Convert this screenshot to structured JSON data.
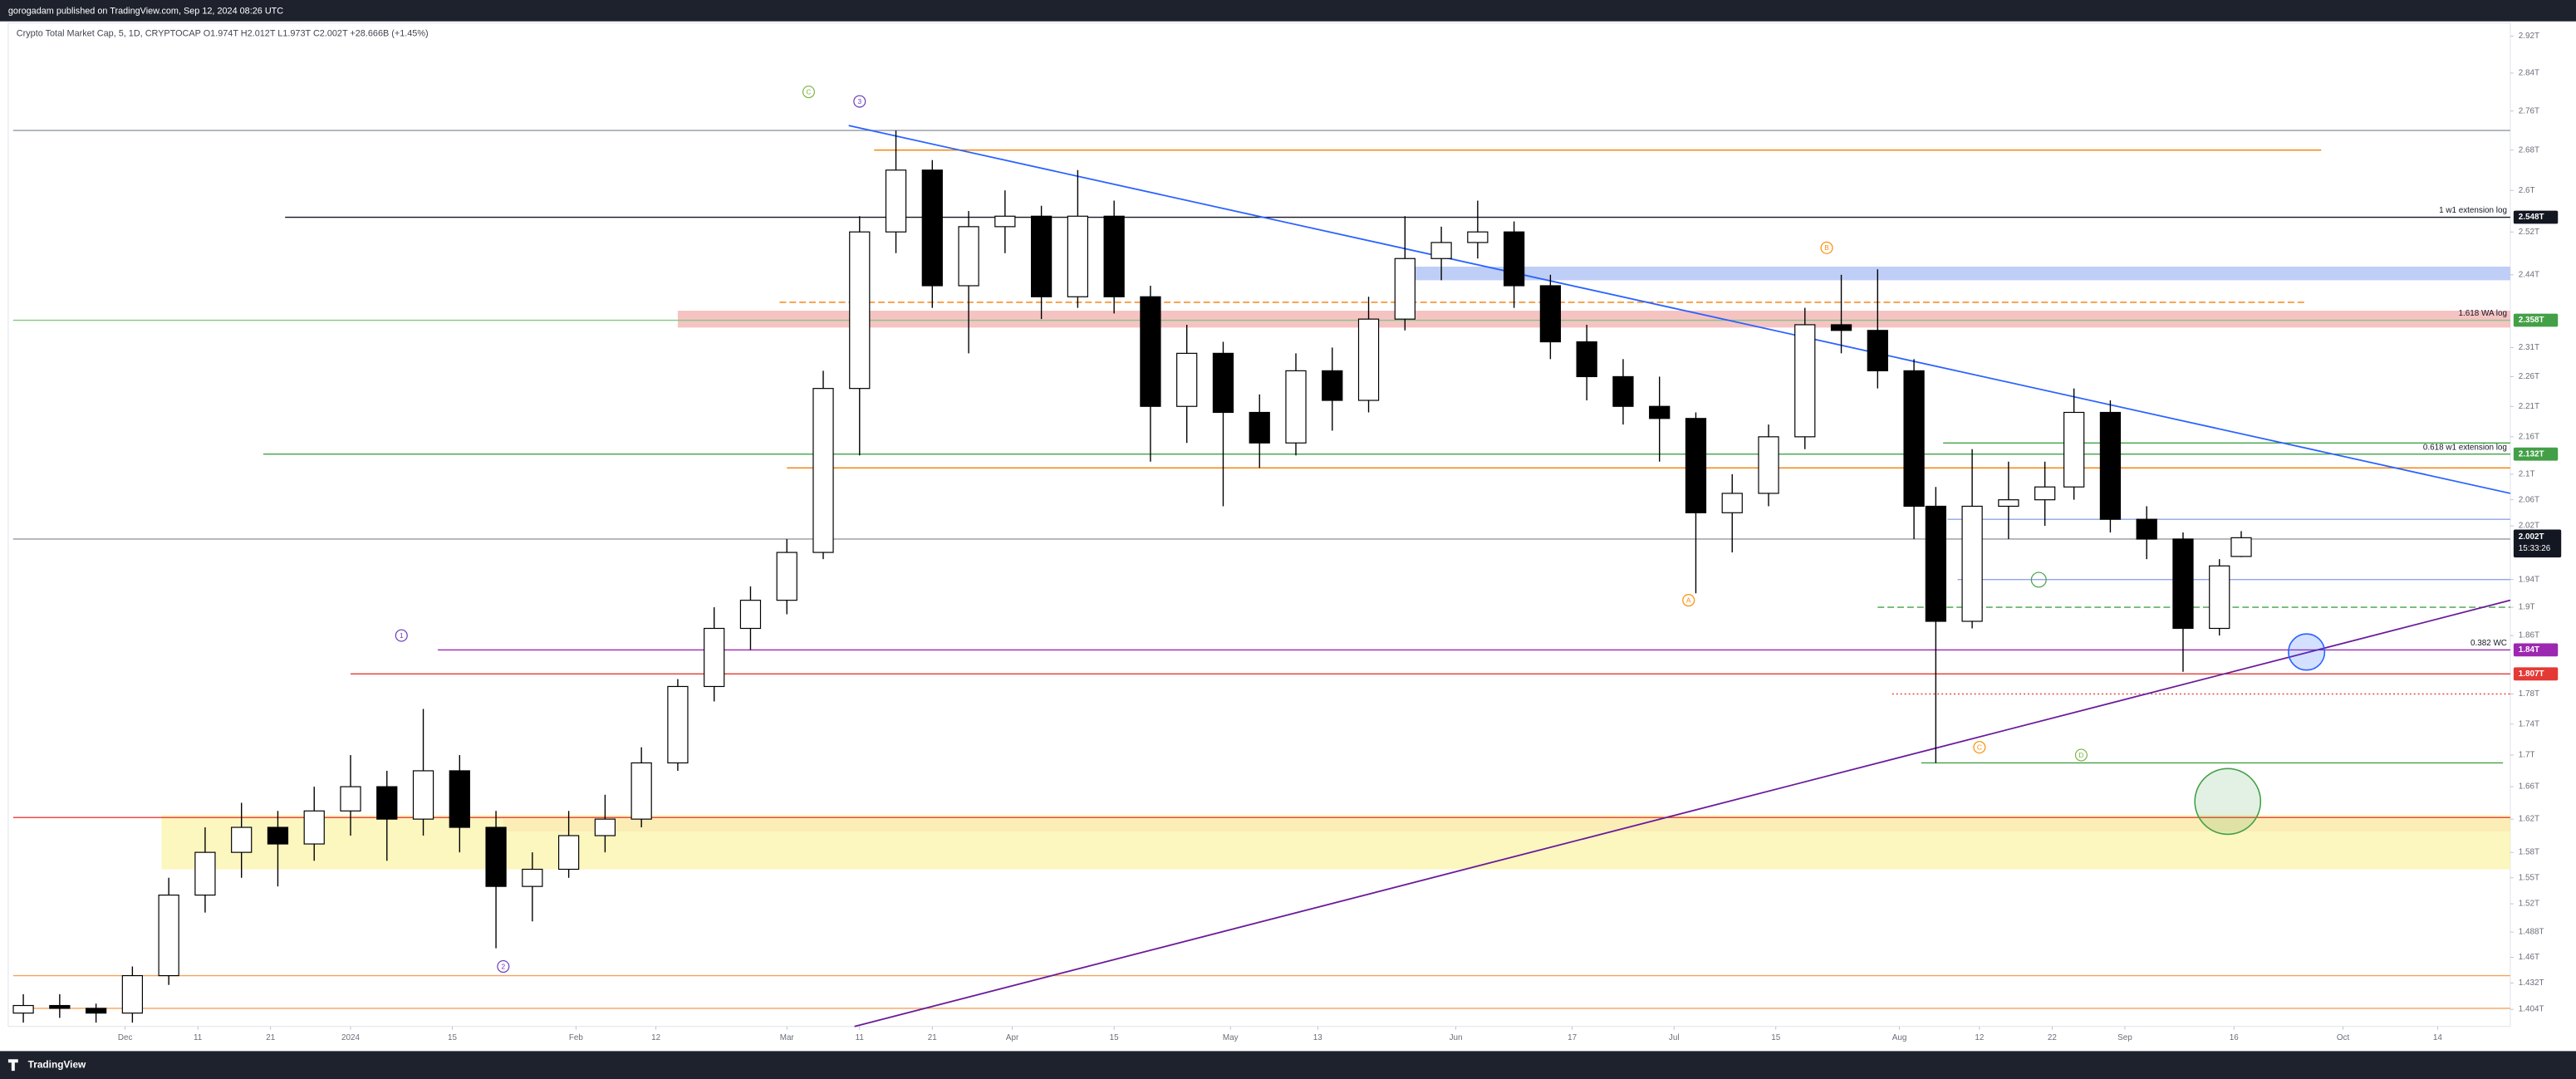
{
  "header": "gorogadam published on TradingView.com, Sep 12, 2024 08:26 UTC",
  "footer": "TradingView",
  "chart_data": {
    "type": "candlestick",
    "legend_text": "Crypto Total Market Cap, 5, 1D, CRYPTOCAP O1.974T H2.012T L1.973T C2.002T +28.666B (+1.45%)",
    "log_scale": true,
    "grid": false,
    "up_color": "#ffffff",
    "down_color": "#000000",
    "xlim": [
      -15.4,
      328
    ],
    "xticks": [
      {
        "value": 0,
        "label": "Dec"
      },
      {
        "value": 10,
        "label": "11"
      },
      {
        "value": 20,
        "label": "21"
      },
      {
        "value": 31,
        "label": "2024"
      },
      {
        "value": 45,
        "label": "15"
      },
      {
        "value": 62,
        "label": "Feb"
      },
      {
        "value": 73,
        "label": "12"
      },
      {
        "value": 91,
        "label": "Mar"
      },
      {
        "value": 101,
        "label": "11"
      },
      {
        "value": 111,
        "label": "21"
      },
      {
        "value": 122,
        "label": "Apr"
      },
      {
        "value": 136,
        "label": "15"
      },
      {
        "value": 152,
        "label": "May"
      },
      {
        "value": 164,
        "label": "13"
      },
      {
        "value": 183,
        "label": "Jun"
      },
      {
        "value": 199,
        "label": "17"
      },
      {
        "value": 213,
        "label": "Jul"
      },
      {
        "value": 227,
        "label": "15"
      },
      {
        "value": 244,
        "label": "Aug"
      },
      {
        "value": 255,
        "label": "12"
      },
      {
        "value": 265,
        "label": "22"
      },
      {
        "value": 275,
        "label": "Sep"
      },
      {
        "value": 290,
        "label": "16"
      },
      {
        "value": 305,
        "label": "Oct"
      },
      {
        "value": 318,
        "label": "14"
      }
    ],
    "ylim": [
      1.386,
      2.949
    ],
    "yticks": [
      {
        "value": 2.92,
        "label": "2.92T"
      },
      {
        "value": 2.84,
        "label": "2.84T"
      },
      {
        "value": 2.76,
        "label": "2.76T"
      },
      {
        "value": 2.68,
        "label": "2.68T"
      },
      {
        "value": 2.6,
        "label": "2.6T"
      },
      {
        "value": 2.52,
        "label": "2.52T"
      },
      {
        "value": 2.44,
        "label": "2.44T"
      },
      {
        "value": 2.31,
        "label": "2.31T"
      },
      {
        "value": 2.26,
        "label": "2.26T"
      },
      {
        "value": 2.21,
        "label": "2.21T"
      },
      {
        "value": 2.16,
        "label": "2.16T"
      },
      {
        "value": 2.1,
        "label": "2.1T"
      },
      {
        "value": 2.06,
        "label": "2.06T"
      },
      {
        "value": 2.02,
        "label": "2.02T"
      },
      {
        "value": 1.94,
        "label": "1.94T"
      },
      {
        "value": 1.9,
        "label": "1.9T"
      },
      {
        "value": 1.86,
        "label": "1.86T"
      },
      {
        "value": 1.78,
        "label": "1.78T"
      },
      {
        "value": 1.74,
        "label": "1.74T"
      },
      {
        "value": 1.7,
        "label": "1.7T"
      },
      {
        "value": 1.66,
        "label": "1.66T"
      },
      {
        "value": 1.62,
        "label": "1.62T"
      },
      {
        "value": 1.58,
        "label": "1.58T"
      },
      {
        "value": 1.55,
        "label": "1.55T"
      },
      {
        "value": 1.52,
        "label": "1.52T"
      },
      {
        "value": 1.488,
        "label": "1.488T"
      },
      {
        "value": 1.46,
        "label": "1.46T"
      },
      {
        "value": 1.432,
        "label": "1.432T"
      },
      {
        "value": 1.404,
        "label": "1.404T"
      }
    ],
    "x": [
      -14,
      -9,
      -4,
      1,
      6,
      11,
      16,
      21,
      26,
      31,
      36,
      41,
      46,
      51,
      56,
      61,
      66,
      71,
      76,
      81,
      86,
      91,
      96,
      101,
      106,
      111,
      116,
      121,
      126,
      131,
      136,
      141,
      146,
      151,
      156,
      161,
      166,
      171,
      176,
      181,
      186,
      191,
      196,
      201,
      206,
      211,
      216,
      221,
      226,
      231,
      236,
      241,
      246,
      249,
      254,
      259,
      264,
      268,
      273,
      278,
      283,
      288,
      291
    ],
    "candles": [
      [
        1.4,
        1.42,
        1.39,
        1.408
      ],
      [
        1.408,
        1.42,
        1.395,
        1.405
      ],
      [
        1.405,
        1.41,
        1.39,
        1.4
      ],
      [
        1.4,
        1.45,
        1.39,
        1.44
      ],
      [
        1.44,
        1.55,
        1.43,
        1.53
      ],
      [
        1.53,
        1.61,
        1.51,
        1.58
      ],
      [
        1.58,
        1.64,
        1.55,
        1.61
      ],
      [
        1.61,
        1.63,
        1.54,
        1.59
      ],
      [
        1.59,
        1.66,
        1.57,
        1.63
      ],
      [
        1.63,
        1.7,
        1.6,
        1.66
      ],
      [
        1.66,
        1.68,
        1.57,
        1.62
      ],
      [
        1.62,
        1.76,
        1.6,
        1.68
      ],
      [
        1.68,
        1.7,
        1.58,
        1.61
      ],
      [
        1.61,
        1.63,
        1.47,
        1.54
      ],
      [
        1.54,
        1.58,
        1.5,
        1.56
      ],
      [
        1.56,
        1.63,
        1.55,
        1.6
      ],
      [
        1.6,
        1.65,
        1.58,
        1.62
      ],
      [
        1.62,
        1.71,
        1.61,
        1.69
      ],
      [
        1.69,
        1.8,
        1.68,
        1.79
      ],
      [
        1.79,
        1.9,
        1.77,
        1.87
      ],
      [
        1.87,
        1.93,
        1.84,
        1.91
      ],
      [
        1.91,
        2.0,
        1.89,
        1.98
      ],
      [
        1.98,
        2.27,
        1.97,
        2.24
      ],
      [
        2.24,
        2.55,
        2.13,
        2.52
      ],
      [
        2.52,
        2.72,
        2.48,
        2.64
      ],
      [
        2.64,
        2.66,
        2.38,
        2.42
      ],
      [
        2.42,
        2.56,
        2.3,
        2.53
      ],
      [
        2.53,
        2.6,
        2.48,
        2.55
      ],
      [
        2.55,
        2.57,
        2.36,
        2.4
      ],
      [
        2.4,
        2.64,
        2.38,
        2.55
      ],
      [
        2.55,
        2.58,
        2.37,
        2.4
      ],
      [
        2.4,
        2.42,
        2.12,
        2.21
      ],
      [
        2.21,
        2.35,
        2.15,
        2.3
      ],
      [
        2.3,
        2.32,
        2.05,
        2.2
      ],
      [
        2.2,
        2.23,
        2.11,
        2.15
      ],
      [
        2.15,
        2.3,
        2.13,
        2.27
      ],
      [
        2.27,
        2.31,
        2.17,
        2.22
      ],
      [
        2.22,
        2.4,
        2.2,
        2.36
      ],
      [
        2.36,
        2.55,
        2.34,
        2.47
      ],
      [
        2.47,
        2.53,
        2.43,
        2.5
      ],
      [
        2.5,
        2.58,
        2.47,
        2.52
      ],
      [
        2.52,
        2.54,
        2.38,
        2.42
      ],
      [
        2.42,
        2.44,
        2.29,
        2.32
      ],
      [
        2.32,
        2.35,
        2.22,
        2.26
      ],
      [
        2.26,
        2.29,
        2.18,
        2.21
      ],
      [
        2.21,
        2.26,
        2.12,
        2.19
      ],
      [
        2.19,
        2.2,
        1.92,
        2.04
      ],
      [
        2.04,
        2.1,
        1.98,
        2.07
      ],
      [
        2.07,
        2.18,
        2.05,
        2.16
      ],
      [
        2.16,
        2.38,
        2.14,
        2.35
      ],
      [
        2.35,
        2.44,
        2.3,
        2.34
      ],
      [
        2.34,
        2.45,
        2.24,
        2.27
      ],
      [
        2.27,
        2.29,
        2.0,
        2.05
      ],
      [
        2.05,
        2.08,
        1.69,
        1.88
      ],
      [
        1.88,
        2.14,
        1.87,
        2.05
      ],
      [
        2.05,
        2.12,
        2.0,
        2.06
      ],
      [
        2.06,
        2.12,
        2.02,
        2.08
      ],
      [
        2.08,
        2.24,
        2.06,
        2.2
      ],
      [
        2.2,
        2.22,
        2.01,
        2.03
      ],
      [
        2.03,
        2.05,
        1.97,
        2.0
      ],
      [
        2.0,
        2.01,
        1.81,
        1.87
      ],
      [
        1.87,
        1.97,
        1.86,
        1.96
      ],
      [
        1.974,
        2.012,
        1.973,
        2.002
      ]
    ],
    "zones": [
      {
        "from": 2.43,
        "to": 2.455,
        "x": [
          177,
          328
        ],
        "color": "#b3c5f5"
      },
      {
        "from": 2.345,
        "to": 2.375,
        "x": [
          76,
          328
        ],
        "color": "#f4b8b8"
      },
      {
        "from": 1.605,
        "to": 1.62,
        "x": [
          52,
          328
        ],
        "color": "#f4b8b8"
      },
      {
        "from": 1.56,
        "to": 1.625,
        "x": [
          5,
          328
        ],
        "color": "#fbf5b4"
      }
    ],
    "levels": [
      {
        "value": 2.72,
        "x": [
          -15.4,
          328
        ],
        "color": "#9598a1",
        "style": "solid"
      },
      {
        "value": 2.68,
        "x": [
          103,
          302
        ],
        "color": "#f57c00",
        "style": "solid"
      },
      {
        "value": 2.548,
        "x": [
          22,
          328
        ],
        "color": "#131722",
        "style": "solid",
        "label": "1 w1 extension log",
        "value_label": "2.548T"
      },
      {
        "value": 2.39,
        "x": [
          90,
          300
        ],
        "color": "#f57c00",
        "style": "dashed"
      },
      {
        "value": 2.358,
        "x": [
          -15.4,
          328
        ],
        "color": "#81c784",
        "style": "solid",
        "label": "1.618 WA log",
        "value_label": "2.358T"
      },
      {
        "value": 2.15,
        "x": [
          250,
          328
        ],
        "color": "#43a047",
        "style": "solid"
      },
      {
        "value": 2.132,
        "x": [
          19,
          328
        ],
        "color": "#43a047",
        "style": "solid",
        "label": "0.618 w1 extension log",
        "value_label": "2.132T"
      },
      {
        "value": 2.11,
        "x": [
          91,
          328
        ],
        "color": "#f57c00",
        "style": "solid"
      },
      {
        "value": 2.03,
        "x": [
          250.6,
          328
        ],
        "color": "#90a4e8",
        "style": "solid"
      },
      {
        "value": 2.0,
        "x": [
          -15.4,
          328
        ],
        "color": "#9598a1",
        "style": "solid"
      },
      {
        "value": 1.94,
        "x": [
          252,
          328
        ],
        "color": "#90a4e8",
        "style": "solid"
      },
      {
        "value": 1.9,
        "x": [
          241,
          328
        ],
        "color": "#43a047",
        "style": "dashed"
      },
      {
        "value": 1.84,
        "x": [
          43,
          328
        ],
        "color": "#9c27b0",
        "style": "solid",
        "label": "0.382 WC",
        "value_label": "1.84T"
      },
      {
        "value": 1.807,
        "x": [
          31,
          328
        ],
        "color": "#e53935",
        "style": "solid",
        "value_label": "1.807T"
      },
      {
        "value": 1.78,
        "x": [
          243,
          328
        ],
        "color": "#e53935",
        "style": "dotted"
      },
      {
        "value": 1.69,
        "x": [
          247,
          327
        ],
        "color": "#43a047",
        "style": "solid"
      },
      {
        "value": 1.622,
        "x": [
          -15.4,
          328
        ],
        "color": "#e53935",
        "style": "solid"
      },
      {
        "value": 1.44,
        "x": [
          -15.4,
          328
        ],
        "color": "#f5a35c",
        "style": "solid"
      },
      {
        "value": 1.405,
        "x": [
          -15.4,
          328
        ],
        "color": "#f5a35c",
        "style": "solid"
      }
    ],
    "label_colors": {
      "2.548T": "#131722",
      "2.358T": "#43a047",
      "2.132T": "#43a047",
      "1.84T": "#9c27b0",
      "1.807T": "#e53935"
    },
    "trendlines": [
      {
        "x": [
          99.5,
          328
        ],
        "y": [
          2.73,
          2.07
        ],
        "color": "#2962ff"
      },
      {
        "x": [
          100.3,
          328
        ],
        "y": [
          1.386,
          1.91
        ],
        "color": "#6a1b9a"
      }
    ],
    "wave_labels": [
      {
        "text": "C",
        "x": 94,
        "y": 2.8,
        "color": "#7cb342"
      },
      {
        "text": "3",
        "x": 101,
        "y": 2.78,
        "color": "#673ab7"
      },
      {
        "text": "B",
        "x": 234,
        "y": 2.49,
        "color": "#fb8c00"
      },
      {
        "text": "A",
        "x": 215,
        "y": 1.91,
        "color": "#fb8c00"
      },
      {
        "text": "C",
        "x": 255,
        "y": 1.71,
        "color": "#fb8c00"
      },
      {
        "text": "D",
        "x": 269,
        "y": 1.7,
        "color": "#7cb342"
      },
      {
        "text": "1",
        "x": 38,
        "y": 1.86,
        "color": "#673ab7"
      },
      {
        "text": "2",
        "x": 52,
        "y": 1.45,
        "color": "#673ab7"
      }
    ],
    "last_price": {
      "value": 2.002,
      "label": "2.002T",
      "countdown": "15:33:26"
    }
  }
}
